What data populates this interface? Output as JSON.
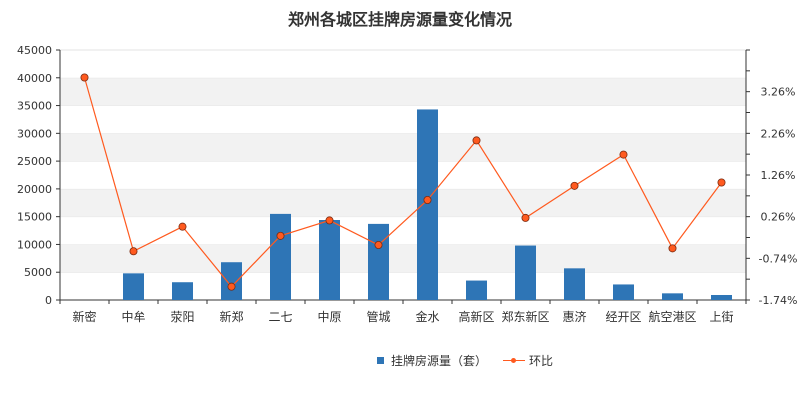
{
  "chart_data": {
    "type": "bar",
    "title": "郑州各城区挂牌房源量变化情况",
    "categories": [
      "新密",
      "中牟",
      "荥阳",
      "新郑",
      "二七",
      "中原",
      "管城",
      "金水",
      "高新区",
      "郑东新区",
      "惠济",
      "经开区",
      "航空港区",
      "上街"
    ],
    "series": [
      {
        "name": "挂牌房源量（套）",
        "type": "bar",
        "axis": "left",
        "color": "#2e75b6",
        "values": [
          0,
          4800,
          3200,
          6800,
          15500,
          14400,
          13700,
          34300,
          3500,
          9800,
          5700,
          2800,
          1200,
          900
        ]
      },
      {
        "name": "环比",
        "type": "line",
        "axis": "right",
        "color": "#ff5a1f",
        "values": [
          3.6,
          -0.57,
          0.02,
          -1.42,
          -0.2,
          0.17,
          -0.42,
          0.66,
          2.09,
          0.23,
          1.0,
          1.75,
          -0.5,
          1.08
        ]
      }
    ],
    "y_left": {
      "min": 0,
      "max": 45000,
      "ticks": [
        0,
        5000,
        10000,
        15000,
        20000,
        25000,
        30000,
        35000,
        40000,
        45000
      ]
    },
    "y_right": {
      "ticks": [
        -1.74,
        -0.74,
        0.26,
        1.26,
        2.26,
        3.26
      ],
      "tick_labels": [
        "-1.74%",
        "-0.74%",
        "0.26%",
        "1.26%",
        "2.26%",
        "3.26%"
      ]
    },
    "legend_position": "bottom-center",
    "grid": "alternating horizontal bands"
  }
}
